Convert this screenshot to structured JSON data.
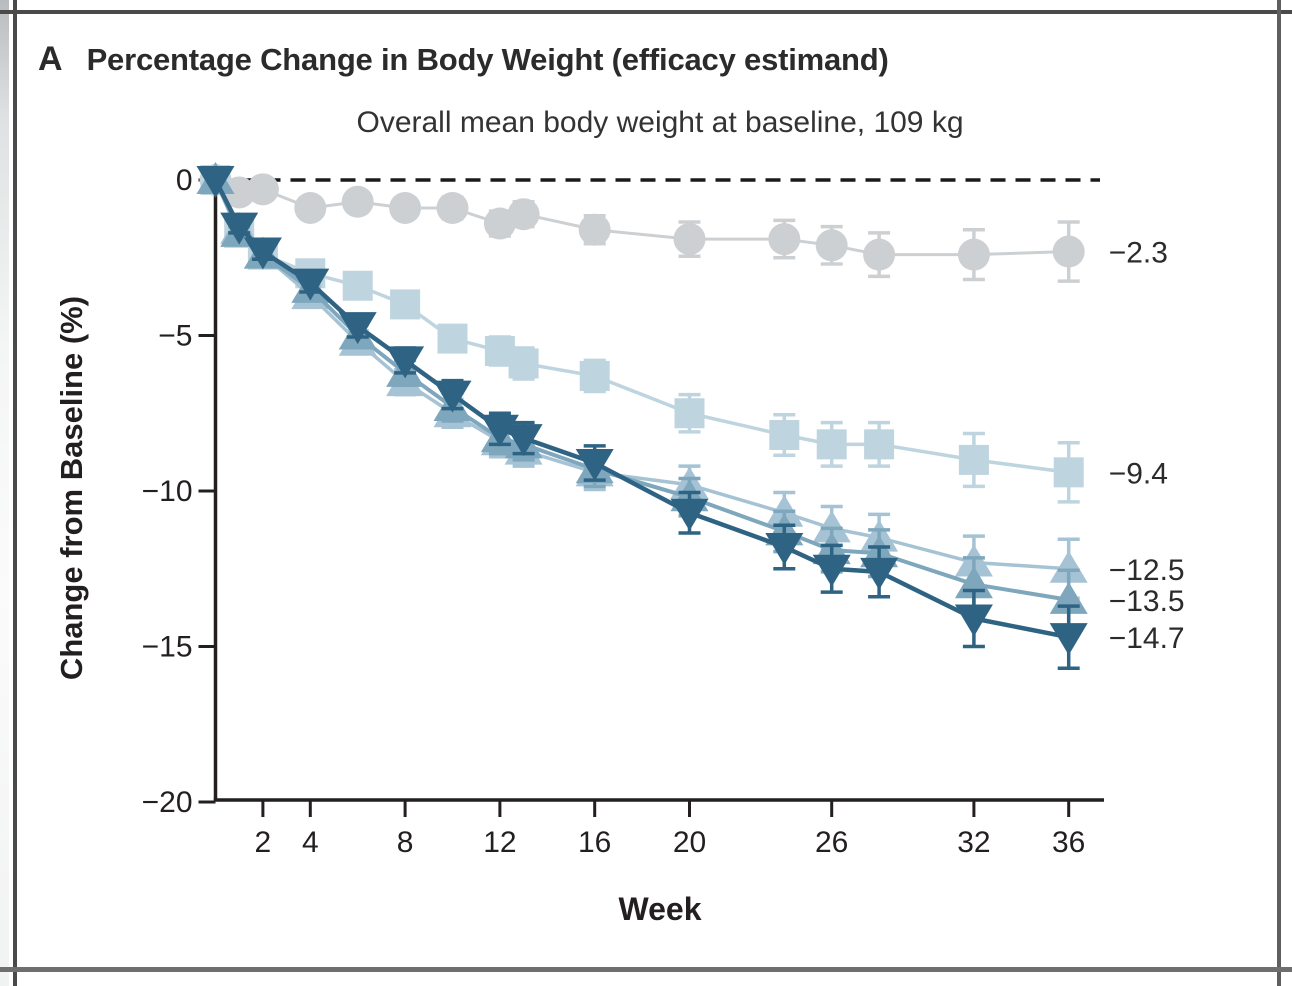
{
  "panel": {
    "letter": "A",
    "title": "Percentage Change in Body Weight (efficacy estimand)"
  },
  "chart_data": {
    "type": "line",
    "subtitle": "Overall mean body weight at baseline, 109 kg",
    "xlabel": "Week",
    "ylabel": "Change from Baseline (%)",
    "xlim": [
      0,
      37.5
    ],
    "ylim": [
      -20,
      0
    ],
    "grid": false,
    "legend": "none (series identified by end-of-line value labels)",
    "zero_reference_line": "dashed horizontal at 0",
    "x_ticks": [
      2,
      4,
      8,
      12,
      16,
      20,
      26,
      32,
      36
    ],
    "x_tick_labels": [
      "2",
      "4",
      "8",
      "12",
      "16",
      "20",
      "26",
      "32",
      "36"
    ],
    "y_ticks": [
      0,
      -5,
      -10,
      -15,
      -20
    ],
    "y_tick_labels": [
      "0",
      "−5",
      "−10",
      "−15",
      "−20"
    ],
    "x": [
      0,
      1,
      2,
      4,
      6,
      8,
      10,
      12,
      13,
      16,
      20,
      24,
      26,
      28,
      32,
      36
    ],
    "series": [
      {
        "name": "gray-circles",
        "marker": "circle",
        "color": "#cdd0d3",
        "end_label": "−2.3",
        "values": [
          0,
          -0.4,
          -0.3,
          -0.9,
          -0.7,
          -0.9,
          -0.9,
          -1.4,
          -1.1,
          -1.6,
          -1.9,
          -1.9,
          -2.1,
          -2.4,
          -2.4,
          -2.3
        ],
        "se": [
          0,
          0.2,
          0.2,
          0.3,
          0.3,
          0.3,
          0.35,
          0.4,
          0.4,
          0.45,
          0.55,
          0.6,
          0.6,
          0.7,
          0.8,
          0.95
        ]
      },
      {
        "name": "pale-blue-squares",
        "marker": "square",
        "color": "#bed4df",
        "end_label": "−9.4",
        "values": [
          0,
          -1.7,
          -2.4,
          -3.0,
          -3.4,
          -4.0,
          -5.1,
          -5.5,
          -5.9,
          -6.3,
          -7.5,
          -8.2,
          -8.5,
          -8.5,
          -9.0,
          -9.4
        ],
        "se": [
          0,
          0.2,
          0.25,
          0.3,
          0.3,
          0.35,
          0.4,
          0.45,
          0.5,
          0.5,
          0.6,
          0.65,
          0.7,
          0.7,
          0.85,
          0.95
        ]
      },
      {
        "name": "light-blue-up-triangles",
        "marker": "triangle-up",
        "color": "#a5c3d4",
        "end_label": "−12.5",
        "values": [
          0,
          -1.6,
          -2.4,
          -3.7,
          -5.2,
          -6.5,
          -7.5,
          -8.4,
          -8.7,
          -9.4,
          -9.8,
          -10.7,
          -11.2,
          -11.5,
          -12.3,
          -12.5
        ],
        "se": [
          0,
          0.2,
          0.25,
          0.3,
          0.35,
          0.4,
          0.45,
          0.5,
          0.5,
          0.55,
          0.6,
          0.65,
          0.7,
          0.75,
          0.85,
          0.95
        ]
      },
      {
        "name": "medium-blue-up-triangles",
        "marker": "triangle-up",
        "color": "#7ea7bd",
        "end_label": "−13.5",
        "values": [
          0,
          -1.7,
          -2.4,
          -3.5,
          -5.0,
          -6.2,
          -7.3,
          -8.3,
          -8.5,
          -9.3,
          -10.2,
          -11.3,
          -11.9,
          -12.0,
          -13.0,
          -13.5
        ],
        "se": [
          0,
          0.2,
          0.25,
          0.3,
          0.35,
          0.4,
          0.45,
          0.5,
          0.5,
          0.55,
          0.6,
          0.65,
          0.7,
          0.75,
          0.85,
          0.95
        ]
      },
      {
        "name": "dark-blue-down-triangles",
        "marker": "triangle-down",
        "color": "#2f6384",
        "end_label": "−14.7",
        "values": [
          0,
          -1.5,
          -2.3,
          -3.3,
          -4.7,
          -5.8,
          -6.9,
          -8.0,
          -8.3,
          -9.1,
          -10.7,
          -11.8,
          -12.5,
          -12.6,
          -14.1,
          -14.7
        ],
        "se": [
          0,
          0.2,
          0.25,
          0.3,
          0.35,
          0.4,
          0.45,
          0.5,
          0.5,
          0.55,
          0.65,
          0.7,
          0.75,
          0.8,
          0.9,
          1.0
        ]
      }
    ],
    "colors": {
      "axis": "#231f20",
      "text": "#231f20",
      "zero_line": "#1a1a1a",
      "frame_border": "#4a4a4a"
    }
  }
}
